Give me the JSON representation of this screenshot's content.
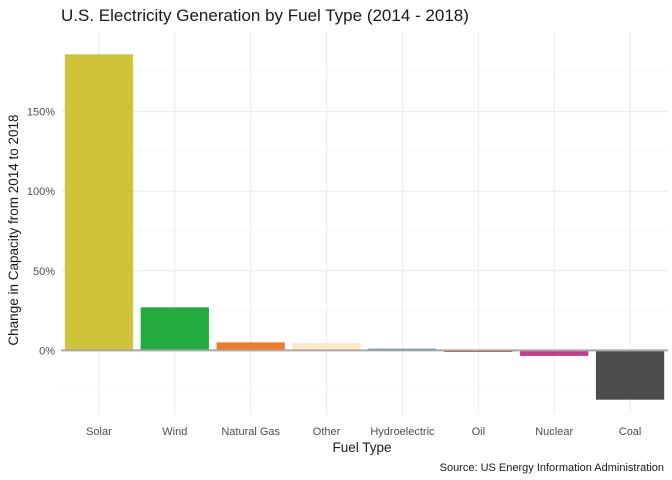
{
  "chart_data": {
    "type": "bar",
    "title": "U.S. Electricity Generation by Fuel Type (2014 - 2018)",
    "xlabel": "Fuel Type",
    "ylabel": "Change in Capacity from 2014 to 2018",
    "caption": "Source: US Energy Information Administration",
    "categories": [
      "Solar",
      "Wind",
      "Natural Gas",
      "Other",
      "Hydroelectric",
      "Oil",
      "Nuclear",
      "Coal"
    ],
    "values": [
      186,
      27,
      5,
      4.5,
      1,
      -1,
      -3.5,
      -31
    ],
    "colors": [
      "#cfc33a",
      "#22ab3e",
      "#f07a29",
      "#fce7c6",
      "#3d7da0",
      "#c72035",
      "#c8388c",
      "#4b4e4a"
    ],
    "ylim": [
      -40,
      200
    ],
    "yticks": [
      0,
      50,
      100,
      150
    ],
    "ytick_labels": [
      "0%",
      "50%",
      "100%",
      "150%"
    ],
    "grid": true,
    "legend": "none"
  }
}
